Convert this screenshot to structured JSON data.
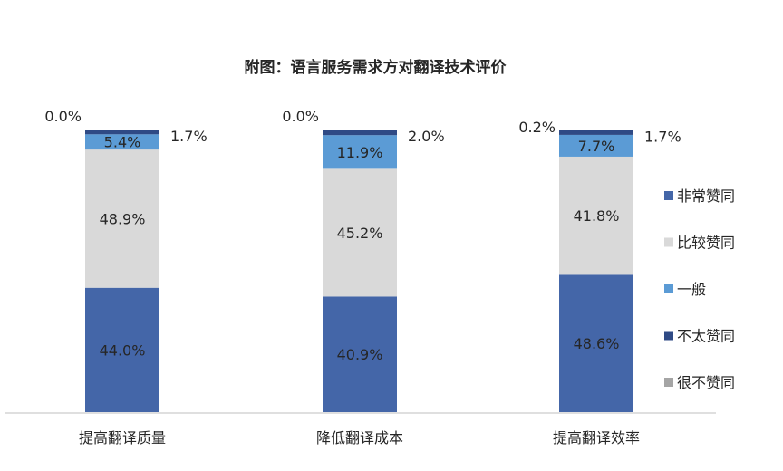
{
  "chart_data": {
    "type": "bar",
    "stacked": true,
    "title": "附图：语言服务需求方对翻译技术评价",
    "categories": [
      "提高翻译质量",
      "降低翻译成本",
      "提高翻译效率"
    ],
    "series": [
      {
        "name": "非常赞同",
        "color": "#4466a8",
        "values": [
          44.0,
          40.9,
          48.6
        ],
        "labels": [
          "44.0%",
          "40.9%",
          "48.6%"
        ]
      },
      {
        "name": "比较赞同",
        "color": "#d9d9d9",
        "values": [
          48.9,
          45.2,
          41.8
        ],
        "labels": [
          "48.9%",
          "45.2%",
          "41.8%"
        ]
      },
      {
        "name": "一般",
        "color": "#5b9bd5",
        "values": [
          5.4,
          11.9,
          7.7
        ],
        "labels": [
          "5.4%",
          "11.9%",
          "7.7%"
        ]
      },
      {
        "name": "不太赞同",
        "color": "#2f4a85",
        "values": [
          1.7,
          2.0,
          1.7
        ],
        "labels": [
          "1.7%",
          "2.0%",
          "1.7%"
        ]
      },
      {
        "name": "很不赞同",
        "color": "#a5a5a5",
        "values": [
          0.0,
          0.0,
          0.2
        ],
        "labels": [
          "0.0%",
          "0.0%",
          "0.2%"
        ]
      }
    ],
    "ylim": [
      0,
      100
    ],
    "legend_position": "right",
    "grid": false
  }
}
